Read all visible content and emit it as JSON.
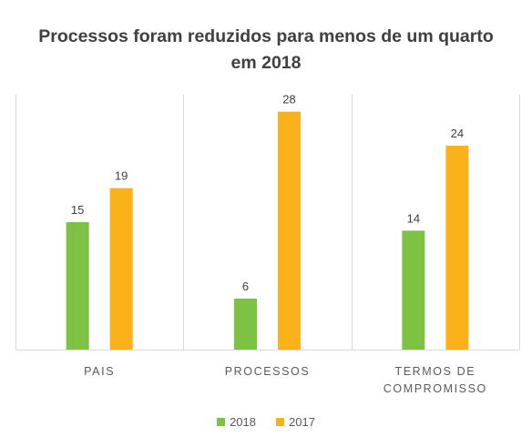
{
  "chart_data": {
    "type": "bar",
    "title": "Processos foram reduzidos para menos de um quarto em 2018",
    "title_lines": [
      "Processos foram reduzidos para menos de um quarto",
      "em 2018"
    ],
    "categories": [
      "PAIS",
      "PROCESSOS",
      "TERMOS DE COMPROMISSO"
    ],
    "category_lines": [
      [
        "PAIS"
      ],
      [
        "PROCESSOS"
      ],
      [
        "TERMOS DE",
        "COMPROMISSO"
      ]
    ],
    "series": [
      {
        "name": "2018",
        "color": "#7DC243",
        "values": [
          15,
          6,
          14
        ]
      },
      {
        "name": "2017",
        "color": "#FBB11A",
        "values": [
          19,
          28,
          24
        ]
      }
    ],
    "ylim": [
      0,
      30
    ],
    "grid": false,
    "category_separators": true,
    "data_labels": true,
    "legend_position": "bottom",
    "axis_color": "#D9D9D9",
    "text_color": "#595959"
  }
}
